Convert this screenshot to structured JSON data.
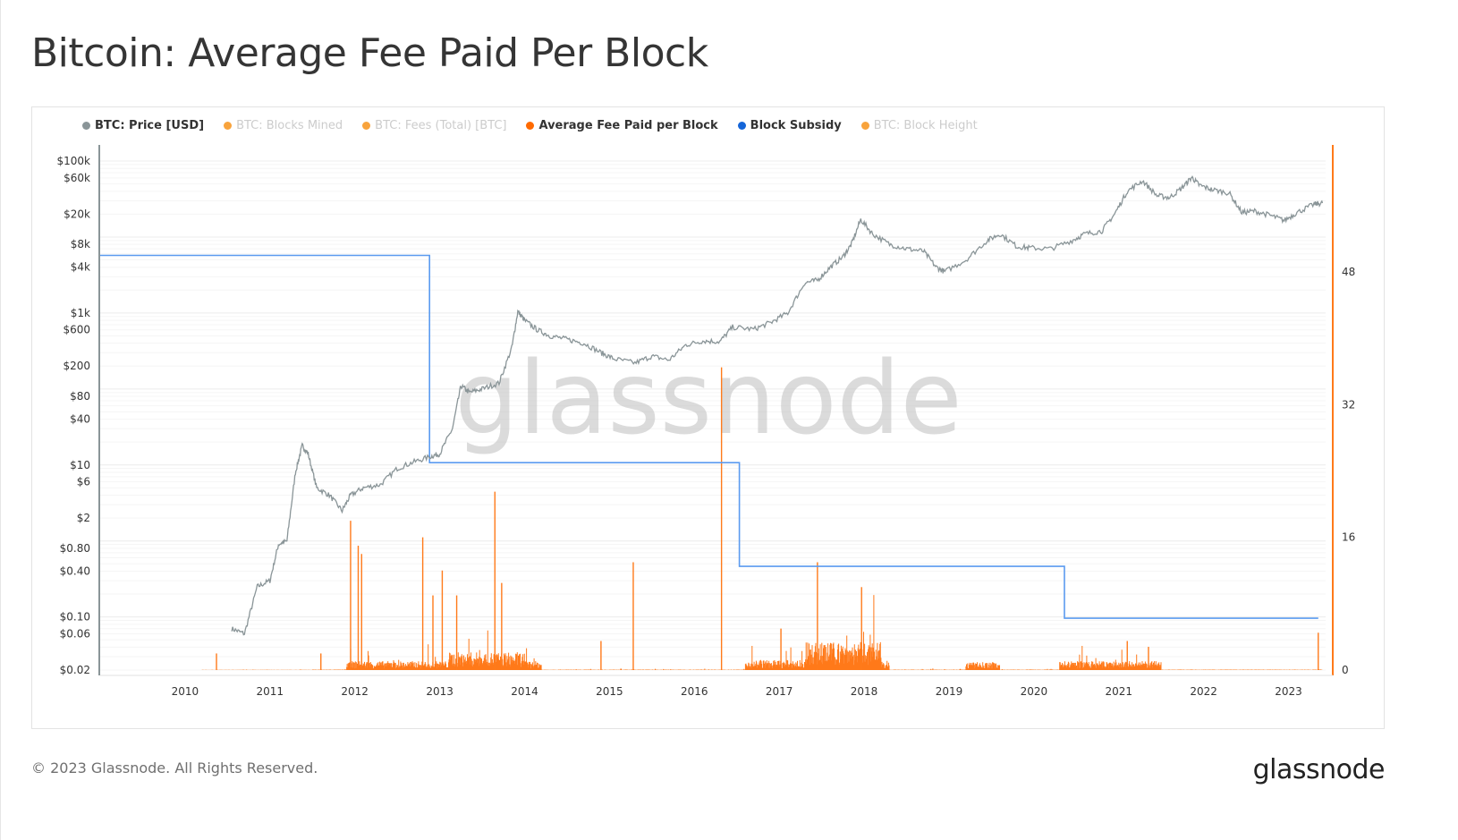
{
  "title": "Bitcoin: Average Fee Paid Per Block",
  "legend": [
    {
      "label": "BTC: Price [USD]",
      "color": "#8a9598",
      "active": true
    },
    {
      "label": "BTC: Blocks Mined",
      "color": "#f7931a",
      "active": false
    },
    {
      "label": "BTC: Fees (Total) [BTC]",
      "color": "#f7931a",
      "active": false
    },
    {
      "label": "Average Fee Paid per Block",
      "color": "#ff6a00",
      "active": true
    },
    {
      "label": "Block Subsidy",
      "color": "#1565d8",
      "active": true
    },
    {
      "label": "BTC: Block Height",
      "color": "#f7931a",
      "active": false
    }
  ],
  "watermark": "glassnode",
  "footer": "© 2023 Glassnode. All Rights Reserved.",
  "brand": "glassnode",
  "chart_data": {
    "type": "line",
    "title": "Bitcoin: Average Fee Paid Per Block",
    "x_axis": {
      "type": "time",
      "range": [
        2009.0,
        2023.5
      ],
      "ticks": [
        "2010",
        "2011",
        "2012",
        "2013",
        "2014",
        "2015",
        "2016",
        "2017",
        "2018",
        "2019",
        "2020",
        "2021",
        "2022",
        "2023"
      ]
    },
    "y_left": {
      "scale": "log",
      "range": [
        0.02,
        100000
      ],
      "ticks": [
        "$100k",
        "$60k",
        "$20k",
        "$8k",
        "$4k",
        "$1k",
        "$600",
        "$200",
        "$80",
        "$40",
        "$10",
        "$6",
        "$2",
        "$0.80",
        "$0.40",
        "$0.10",
        "$0.06",
        "$0.02"
      ],
      "tick_values": [
        100000,
        60000,
        20000,
        8000,
        4000,
        1000,
        600,
        200,
        80,
        40,
        10,
        6,
        2,
        0.8,
        0.4,
        0.1,
        0.06,
        0.02
      ]
    },
    "y_right": {
      "scale": "linear",
      "range": [
        0,
        48
      ],
      "ticks": [
        "48",
        "32",
        "16",
        "0"
      ],
      "tick_values": [
        48,
        32,
        16,
        0
      ]
    },
    "grid": true,
    "legend_position": "top-left",
    "series": [
      {
        "name": "BTC: Price [USD]",
        "axis": "left",
        "color": "#8a9598",
        "x": [
          2010.55,
          2010.7,
          2010.85,
          2011.0,
          2011.1,
          2011.2,
          2011.3,
          2011.38,
          2011.45,
          2011.55,
          2011.7,
          2011.85,
          2011.95,
          2012.1,
          2012.3,
          2012.5,
          2012.7,
          2012.9,
          2013.0,
          2013.15,
          2013.25,
          2013.35,
          2013.5,
          2013.7,
          2013.85,
          2013.92,
          2014.0,
          2014.15,
          2014.3,
          2014.5,
          2014.7,
          2014.9,
          2015.05,
          2015.3,
          2015.5,
          2015.7,
          2015.9,
          2016.1,
          2016.3,
          2016.45,
          2016.7,
          2016.9,
          2017.1,
          2017.3,
          2017.45,
          2017.6,
          2017.75,
          2017.85,
          2017.96,
          2018.1,
          2018.3,
          2018.5,
          2018.7,
          2018.85,
          2018.95,
          2019.2,
          2019.45,
          2019.6,
          2019.8,
          2019.95,
          2020.2,
          2020.45,
          2020.6,
          2020.8,
          2020.95,
          2021.1,
          2021.28,
          2021.45,
          2021.6,
          2021.75,
          2021.86,
          2021.95,
          2022.1,
          2022.3,
          2022.45,
          2022.6,
          2022.8,
          2022.95,
          2023.1,
          2023.3,
          2023.4
        ],
        "y": [
          0.07,
          0.06,
          0.25,
          0.3,
          0.9,
          1.0,
          8,
          18,
          14,
          5,
          4,
          2.5,
          4,
          5,
          5.5,
          9,
          11,
          13,
          14,
          30,
          110,
          90,
          100,
          120,
          350,
          1050,
          800,
          600,
          500,
          450,
          400,
          300,
          250,
          220,
          270,
          240,
          380,
          430,
          420,
          650,
          610,
          750,
          1000,
          2500,
          2700,
          4000,
          5500,
          8000,
          17000,
          11000,
          8000,
          7000,
          6500,
          4000,
          3500,
          5000,
          9000,
          11000,
          7500,
          7200,
          7000,
          9000,
          11000,
          12000,
          20000,
          40000,
          55000,
          35000,
          33000,
          45000,
          61000,
          48000,
          42000,
          38000,
          21000,
          22000,
          19000,
          16500,
          21000,
          27000,
          28000
        ]
      },
      {
        "name": "Average Fee Paid per Block",
        "axis": "right",
        "color": "#ff6a00",
        "spikes_x": [
          2010.37,
          2011.6,
          2011.95,
          2012.04,
          2012.08,
          2012.8,
          2012.92,
          2013.03,
          2013.2,
          2013.65,
          2013.73,
          2014.9,
          2015.28,
          2016.32,
          2017.02,
          2017.45,
          2017.97,
          2021.1,
          2021.35,
          2023.35
        ],
        "spikes_y": [
          2,
          2,
          18,
          15,
          14,
          16,
          9,
          12,
          9,
          21.5,
          10.5,
          3.5,
          13,
          36.5,
          5,
          13,
          10,
          3.5,
          2.8,
          4.5
        ]
      },
      {
        "name": "Block Subsidy",
        "axis": "right",
        "color": "#5b9bf0",
        "x": [
          2009.0,
          2012.88,
          2012.88,
          2016.53,
          2016.53,
          2020.36,
          2020.36,
          2023.35
        ],
        "y": [
          50,
          50,
          25,
          25,
          12.5,
          12.5,
          6.25,
          6.25
        ]
      }
    ]
  }
}
